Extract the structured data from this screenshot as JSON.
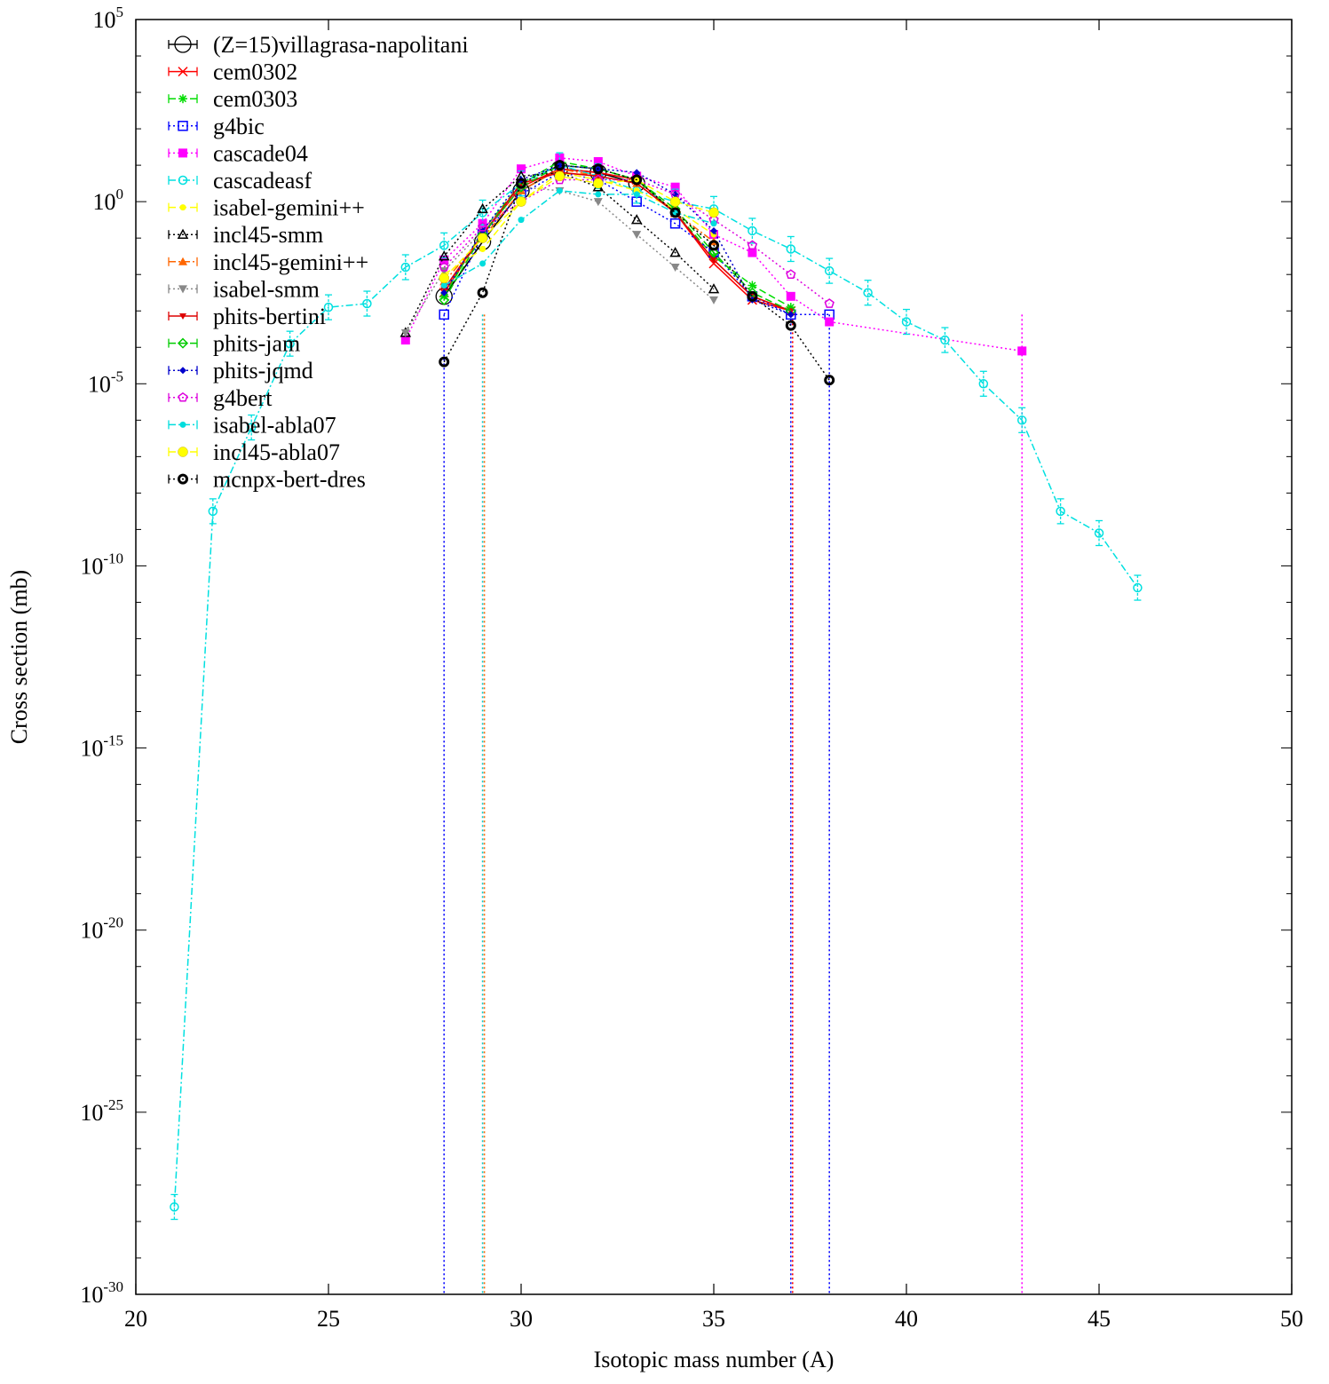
{
  "chart_data": {
    "type": "line",
    "xlabel": "Isotopic mass number (A)",
    "ylabel": "Cross section (mb)",
    "xlim": [
      20,
      50
    ],
    "ylim_log10": [
      -30,
      5
    ],
    "y_scale": "log",
    "grid": false,
    "legend_position": "top-left",
    "x_ticks": [
      20,
      25,
      30,
      35,
      40,
      45,
      50
    ],
    "y_tick_exponents": [
      -30,
      -25,
      -20,
      -15,
      -10,
      -5,
      0,
      5
    ],
    "y_tick_base": "10",
    "series": [
      {
        "name": "(Z=15)villagrasa-napolitani",
        "color": "#000000",
        "marker": "open-circle-large",
        "dash": "solid",
        "points": [
          [
            28,
            -2.6
          ],
          [
            29,
            -1.1
          ],
          [
            30,
            0.3
          ],
          [
            31,
            0.9
          ],
          [
            32,
            0.8
          ],
          [
            33,
            0.5
          ]
        ]
      },
      {
        "name": "cem0302",
        "color": "#ff0000",
        "marker": "cross",
        "dash": "solid",
        "points": [
          [
            28,
            -2.5
          ],
          [
            29,
            -0.9
          ],
          [
            30,
            0.4
          ],
          [
            31,
            0.9
          ],
          [
            32,
            0.8
          ],
          [
            33,
            0.6
          ],
          [
            34,
            -0.3
          ],
          [
            35,
            -1.7
          ],
          [
            36,
            -2.7
          ],
          [
            37,
            -3.0
          ]
        ]
      },
      {
        "name": "cem0303",
        "color": "#00dd00",
        "marker": "star",
        "dash": "dashed",
        "points": [
          [
            28,
            -2.6
          ],
          [
            29,
            -0.8
          ],
          [
            30,
            0.5
          ],
          [
            31,
            1.1
          ],
          [
            32,
            0.9
          ],
          [
            33,
            0.6
          ],
          [
            34,
            -0.3
          ],
          [
            35,
            -1.5
          ],
          [
            36,
            -2.3
          ],
          [
            37,
            -2.9
          ]
        ]
      },
      {
        "name": "g4bic",
        "color": "#0000ff",
        "marker": "open-square",
        "dash": "dotted",
        "points": [
          [
            28,
            -3.1
          ],
          [
            29,
            -0.9
          ],
          [
            30,
            0.2
          ],
          [
            31,
            0.8
          ],
          [
            32,
            0.6
          ],
          [
            33,
            0.0
          ],
          [
            34,
            -0.6
          ],
          [
            35,
            -1.4
          ],
          [
            36,
            -2.6
          ],
          [
            37,
            -3.1
          ],
          [
            38,
            -3.1
          ]
        ]
      },
      {
        "name": "cascade04",
        "color": "#ff00ff",
        "marker": "filled-square",
        "dash": "dotted",
        "points": [
          [
            27,
            -3.8
          ],
          [
            28,
            -1.6
          ],
          [
            29,
            -0.6
          ],
          [
            30,
            0.9
          ],
          [
            31,
            1.2
          ],
          [
            32,
            1.1
          ],
          [
            33,
            0.7
          ],
          [
            34,
            0.4
          ],
          [
            35,
            -0.9
          ],
          [
            36,
            -1.4
          ],
          [
            37,
            -2.6
          ],
          [
            38,
            -3.3
          ],
          [
            43,
            -4.1
          ]
        ]
      },
      {
        "name": "cascadeasf",
        "color": "#00e0e0",
        "marker": "open-circle",
        "dash": "dash-dot",
        "points": [
          [
            21,
            -27.6
          ],
          [
            22,
            -8.5
          ],
          [
            23,
            -6.2
          ],
          [
            24,
            -3.9
          ],
          [
            25,
            -2.9
          ],
          [
            26,
            -2.8
          ],
          [
            27,
            -1.8
          ],
          [
            28,
            -1.2
          ],
          [
            29,
            -0.3
          ],
          [
            30,
            0.5
          ],
          [
            31,
            1.0
          ],
          [
            32,
            0.7
          ],
          [
            33,
            0.3
          ],
          [
            34,
            0.0
          ],
          [
            35,
            -0.2
          ],
          [
            36,
            -0.8
          ],
          [
            37,
            -1.3
          ],
          [
            38,
            -1.9
          ],
          [
            39,
            -2.5
          ],
          [
            40,
            -3.3
          ],
          [
            41,
            -3.8
          ],
          [
            42,
            -5.0
          ],
          [
            43,
            -6.0
          ],
          [
            44,
            -8.5
          ],
          [
            45,
            -9.1
          ],
          [
            46,
            -10.6
          ]
        ]
      },
      {
        "name": "isabel-gemini++",
        "color": "#ffff00",
        "marker": "filled-circle-small",
        "dash": "dashed",
        "points": [
          [
            28,
            -2.0
          ],
          [
            29,
            -1.3
          ],
          [
            30,
            0.0
          ],
          [
            31,
            0.8
          ],
          [
            32,
            0.6
          ],
          [
            33,
            0.3
          ],
          [
            34,
            -0.2
          ],
          [
            35,
            -0.9
          ]
        ]
      },
      {
        "name": "incl45-smm",
        "color": "#000000",
        "marker": "open-triangle",
        "dash": "dotted",
        "points": [
          [
            27,
            -3.6
          ],
          [
            28,
            -1.5
          ],
          [
            29,
            -0.2
          ],
          [
            30,
            0.7
          ],
          [
            31,
            0.8
          ],
          [
            32,
            0.4
          ],
          [
            33,
            -0.5
          ],
          [
            34,
            -1.4
          ],
          [
            35,
            -2.4
          ]
        ]
      },
      {
        "name": "incl45-gemini++",
        "color": "#ff6600",
        "marker": "filled-triangle",
        "dash": "dash-dot",
        "points": [
          [
            28,
            -2.2
          ],
          [
            29,
            -1.0
          ],
          [
            30,
            0.3
          ],
          [
            31,
            0.9
          ],
          [
            32,
            0.7
          ],
          [
            33,
            0.5
          ],
          [
            34,
            -0.3
          ],
          [
            35,
            -1.1
          ]
        ]
      },
      {
        "name": "isabel-smm",
        "color": "#888888",
        "marker": "filled-triangle-down",
        "dash": "dotted",
        "points": [
          [
            27,
            -3.6
          ],
          [
            28,
            -1.9
          ],
          [
            29,
            -0.8
          ],
          [
            30,
            0.4
          ],
          [
            31,
            0.3
          ],
          [
            32,
            0.0
          ],
          [
            33,
            -0.9
          ],
          [
            34,
            -1.8
          ],
          [
            35,
            -2.7
          ]
        ]
      },
      {
        "name": "phits-bertini",
        "color": "#dd0000",
        "marker": "filled-triangle-down-small",
        "dash": "solid",
        "points": [
          [
            28,
            -2.4
          ],
          [
            29,
            -0.9
          ],
          [
            30,
            0.5
          ],
          [
            31,
            0.8
          ],
          [
            32,
            0.7
          ],
          [
            33,
            0.5
          ],
          [
            34,
            -0.3
          ],
          [
            35,
            -1.6
          ],
          [
            36,
            -2.6
          ],
          [
            37,
            -3.0
          ]
        ]
      },
      {
        "name": "phits-jam",
        "color": "#00cc00",
        "marker": "open-diamond",
        "dash": "dashed",
        "points": [
          [
            28,
            -2.7
          ],
          [
            29,
            -0.9
          ],
          [
            30,
            0.4
          ],
          [
            31,
            1.0
          ],
          [
            32,
            0.9
          ],
          [
            33,
            0.6
          ],
          [
            34,
            -0.2
          ],
          [
            35,
            -1.4
          ],
          [
            36,
            -2.5
          ],
          [
            37,
            -3.0
          ]
        ]
      },
      {
        "name": "phits-jqmd",
        "color": "#0000cc",
        "marker": "filled-diamond",
        "dash": "dotted",
        "points": [
          [
            28,
            -2.5
          ],
          [
            29,
            -0.8
          ],
          [
            30,
            0.6
          ],
          [
            31,
            1.0
          ],
          [
            32,
            0.9
          ],
          [
            33,
            0.8
          ],
          [
            34,
            0.2
          ],
          [
            35,
            -0.8
          ],
          [
            36,
            -2.7
          ],
          [
            37,
            -3.1
          ]
        ]
      },
      {
        "name": "g4bert",
        "color": "#dd00dd",
        "marker": "open-pentagon",
        "dash": "dotted",
        "points": [
          [
            28,
            -1.8
          ],
          [
            29,
            -0.7
          ],
          [
            30,
            0.0
          ],
          [
            31,
            0.6
          ],
          [
            32,
            0.6
          ],
          [
            33,
            0.6
          ],
          [
            34,
            0.2
          ],
          [
            35,
            -0.5
          ],
          [
            36,
            -1.2
          ],
          [
            37,
            -2.0
          ],
          [
            38,
            -2.8
          ]
        ]
      },
      {
        "name": "isabel-abla07",
        "color": "#00dddd",
        "marker": "filled-circle-small",
        "dash": "dash-dot",
        "points": [
          [
            28,
            -2.3
          ],
          [
            29,
            -1.7
          ],
          [
            30,
            -0.5
          ],
          [
            31,
            0.3
          ],
          [
            32,
            0.2
          ],
          [
            33,
            0.2
          ],
          [
            34,
            -0.3
          ],
          [
            35,
            -0.6
          ]
        ]
      },
      {
        "name": "incl45-abla07",
        "color": "#ffff00",
        "marker": "filled-circle",
        "dash": "dashed",
        "points": [
          [
            28,
            -2.1
          ],
          [
            29,
            -1.0
          ],
          [
            30,
            0.0
          ],
          [
            31,
            0.7
          ],
          [
            32,
            0.5
          ],
          [
            33,
            0.6
          ],
          [
            34,
            0.0
          ],
          [
            35,
            -0.3
          ]
        ]
      },
      {
        "name": "mcnpx-bert-dres",
        "color": "#000000",
        "marker": "bold-circle",
        "dash": "dotted",
        "points": [
          [
            28,
            -4.4
          ],
          [
            29,
            -2.5
          ],
          [
            30,
            0.5
          ],
          [
            31,
            1.0
          ],
          [
            32,
            0.9
          ],
          [
            33,
            0.6
          ],
          [
            34,
            -0.3
          ],
          [
            35,
            -1.2
          ],
          [
            36,
            -2.6
          ],
          [
            37,
            -3.4
          ],
          [
            38,
            -4.9
          ]
        ]
      }
    ],
    "drop_lines": [
      {
        "x": 28,
        "color": "#0000ff"
      },
      {
        "x": 29,
        "color": "#00cccc"
      },
      {
        "x": 29,
        "color": "#ff6600"
      },
      {
        "x": 37,
        "color": "#0000ff"
      },
      {
        "x": 37,
        "color": "#ff0000"
      },
      {
        "x": 38,
        "color": "#0000ff"
      },
      {
        "x": 43,
        "color": "#ff00ff"
      }
    ]
  }
}
